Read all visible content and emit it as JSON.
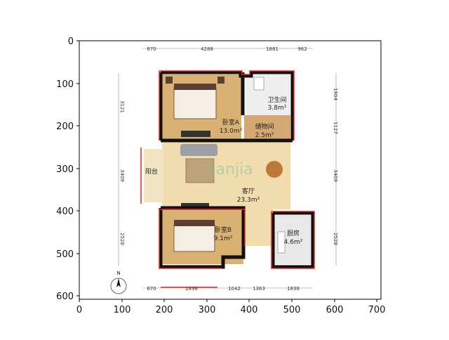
{
  "axes": {
    "x_ticks": [
      "0",
      "100",
      "200",
      "300",
      "400",
      "500",
      "600",
      "700"
    ],
    "y_ticks": [
      "0",
      "100",
      "200",
      "300",
      "400",
      "500",
      "600"
    ]
  },
  "dimensions": {
    "top": [
      "870",
      "4288",
      "1881",
      "962"
    ],
    "bottom": [
      "870",
      "2898",
      "1042",
      "1363",
      "1838"
    ],
    "left": [
      "3121",
      "3409",
      "2528"
    ],
    "right": [
      "1904",
      "1127",
      "3409",
      "2528"
    ]
  },
  "rooms": {
    "bedroom_a": {
      "name": "卧室A",
      "area": "13.0m²"
    },
    "bathroom": {
      "name": "卫生间",
      "area": "3.8m²"
    },
    "storage": {
      "name": "储物间",
      "area": "2.5m²"
    },
    "living": {
      "name": "客厅",
      "area": "23.3m²"
    },
    "balcony": {
      "name": "阳台"
    },
    "bedroom_b": {
      "name": "卧室B",
      "area": "9.1m²"
    },
    "kitchen": {
      "name": "厨房",
      "area": "4.6m²"
    }
  },
  "watermark": "lianjia",
  "compass": "N"
}
